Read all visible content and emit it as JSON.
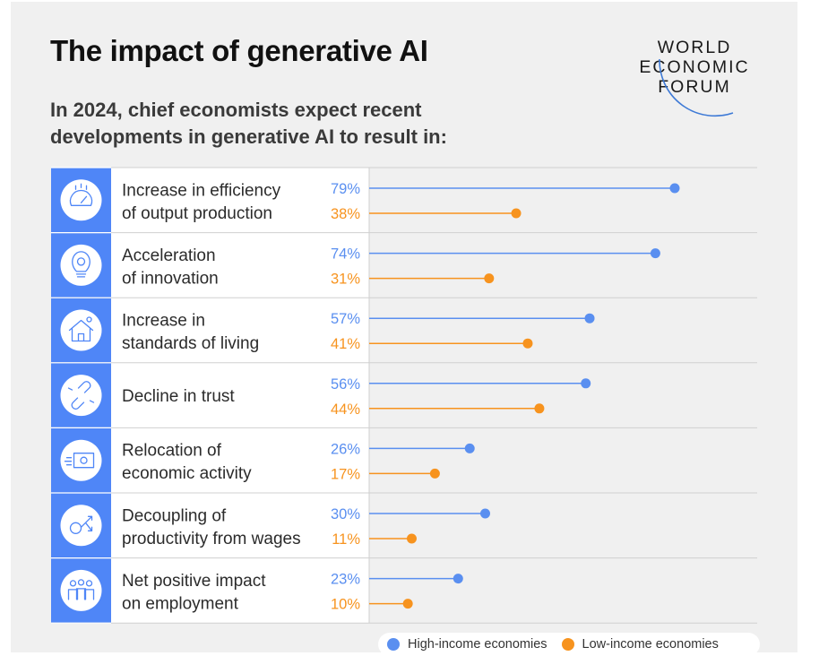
{
  "header": {
    "title": "The impact of generative AI",
    "subtitle_lines": [
      "In 2024, chief economists expect recent",
      "developments in generative AI to result in:"
    ]
  },
  "logo": {
    "lines": [
      "WORLD",
      "ECONOMIC",
      "FORUM"
    ],
    "icon": "wef-arc-icon"
  },
  "colors": {
    "high": "#5a8ff0",
    "low": "#f7931e",
    "icon_column": "#4f86f7",
    "background": "#f0f0f0"
  },
  "chart_data": {
    "type": "dot-bar",
    "title": "The impact of generative AI",
    "xlim": [
      0,
      100
    ],
    "unit": "%",
    "series": [
      {
        "name": "High-income economies",
        "values": [
          79,
          74,
          57,
          56,
          26,
          30,
          23
        ]
      },
      {
        "name": "Low-income economies",
        "values": [
          38,
          31,
          41,
          44,
          17,
          11,
          10
        ]
      }
    ],
    "categories": [
      {
        "lines": [
          "Increase in efficiency",
          "of output production"
        ],
        "icon": "gauge-icon",
        "high_label": "79%",
        "low_label": "38%"
      },
      {
        "lines": [
          "Acceleration",
          "of innovation"
        ],
        "icon": "lightbulb-gear-icon",
        "high_label": "74%",
        "low_label": "31%"
      },
      {
        "lines": [
          "Increase in",
          "standards of living"
        ],
        "icon": "house-icon",
        "high_label": "57%",
        "low_label": "41%"
      },
      {
        "lines": [
          "Decline in trust"
        ],
        "icon": "broken-link-icon",
        "high_label": "56%",
        "low_label": "44%"
      },
      {
        "lines": [
          "Relocation of",
          "economic activity"
        ],
        "icon": "moving-money-icon",
        "high_label": "26%",
        "low_label": "17%"
      },
      {
        "lines": [
          "Decoupling of",
          "productivity from wages"
        ],
        "icon": "diverging-coin-icon",
        "high_label": "30%",
        "low_label": "11%"
      },
      {
        "lines": [
          "Net positive impact",
          "on employment"
        ],
        "icon": "people-group-icon",
        "high_label": "23%",
        "low_label": "10%"
      }
    ],
    "legend": [
      {
        "label": "High-income economies",
        "series": "high"
      },
      {
        "label": "Low-income economies",
        "series": "low"
      }
    ]
  }
}
